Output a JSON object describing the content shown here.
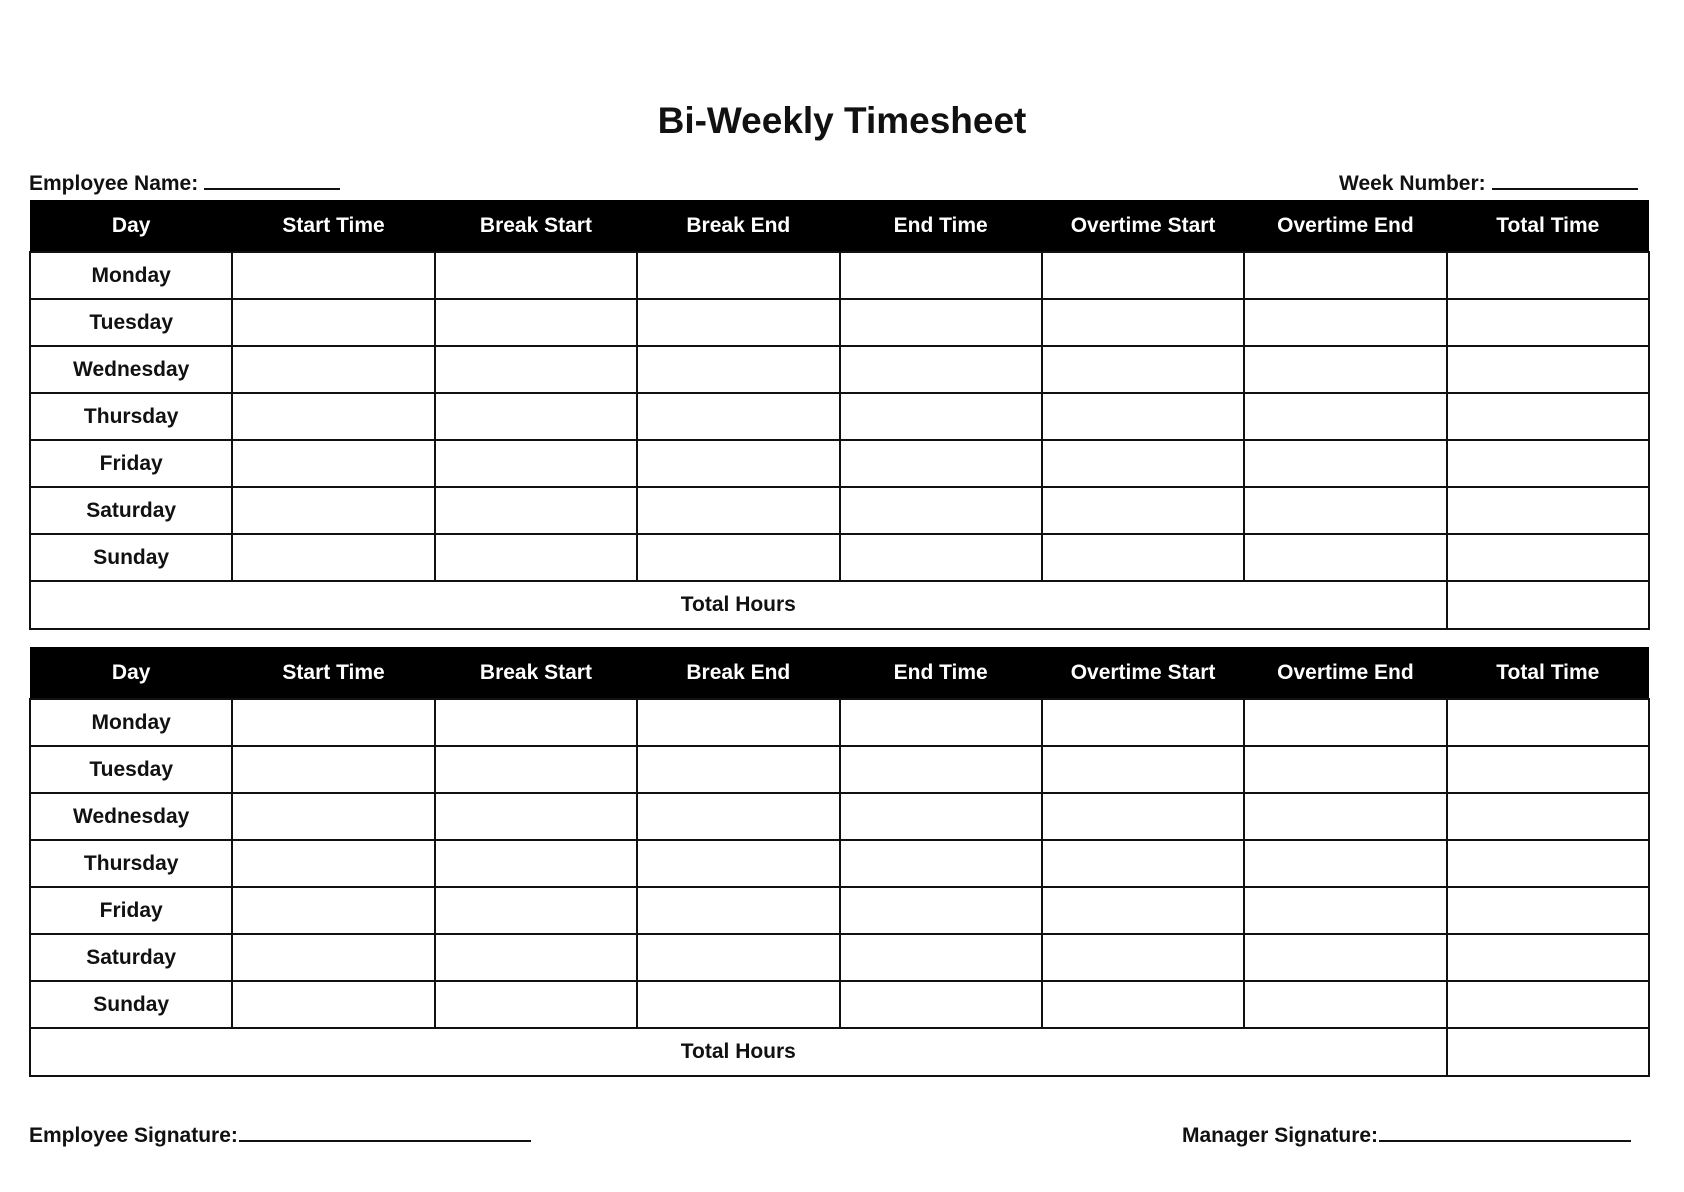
{
  "title": "Bi-Weekly Timesheet",
  "employee_name_label": "Employee Name:",
  "week_number_label": "Week Number:",
  "columns": [
    "Day",
    "Start Time",
    "Break Start",
    "Break End",
    "End Time",
    "Overtime Start",
    "Overtime End",
    "Total Time"
  ],
  "days": [
    "Monday",
    "Tuesday",
    "Wednesday",
    "Thursday",
    "Friday",
    "Saturday",
    "Sunday"
  ],
  "total_hours_label": "Total Hours",
  "employee_signature_label": "Employee Signature:",
  "manager_signature_label": "Manager Signature:"
}
